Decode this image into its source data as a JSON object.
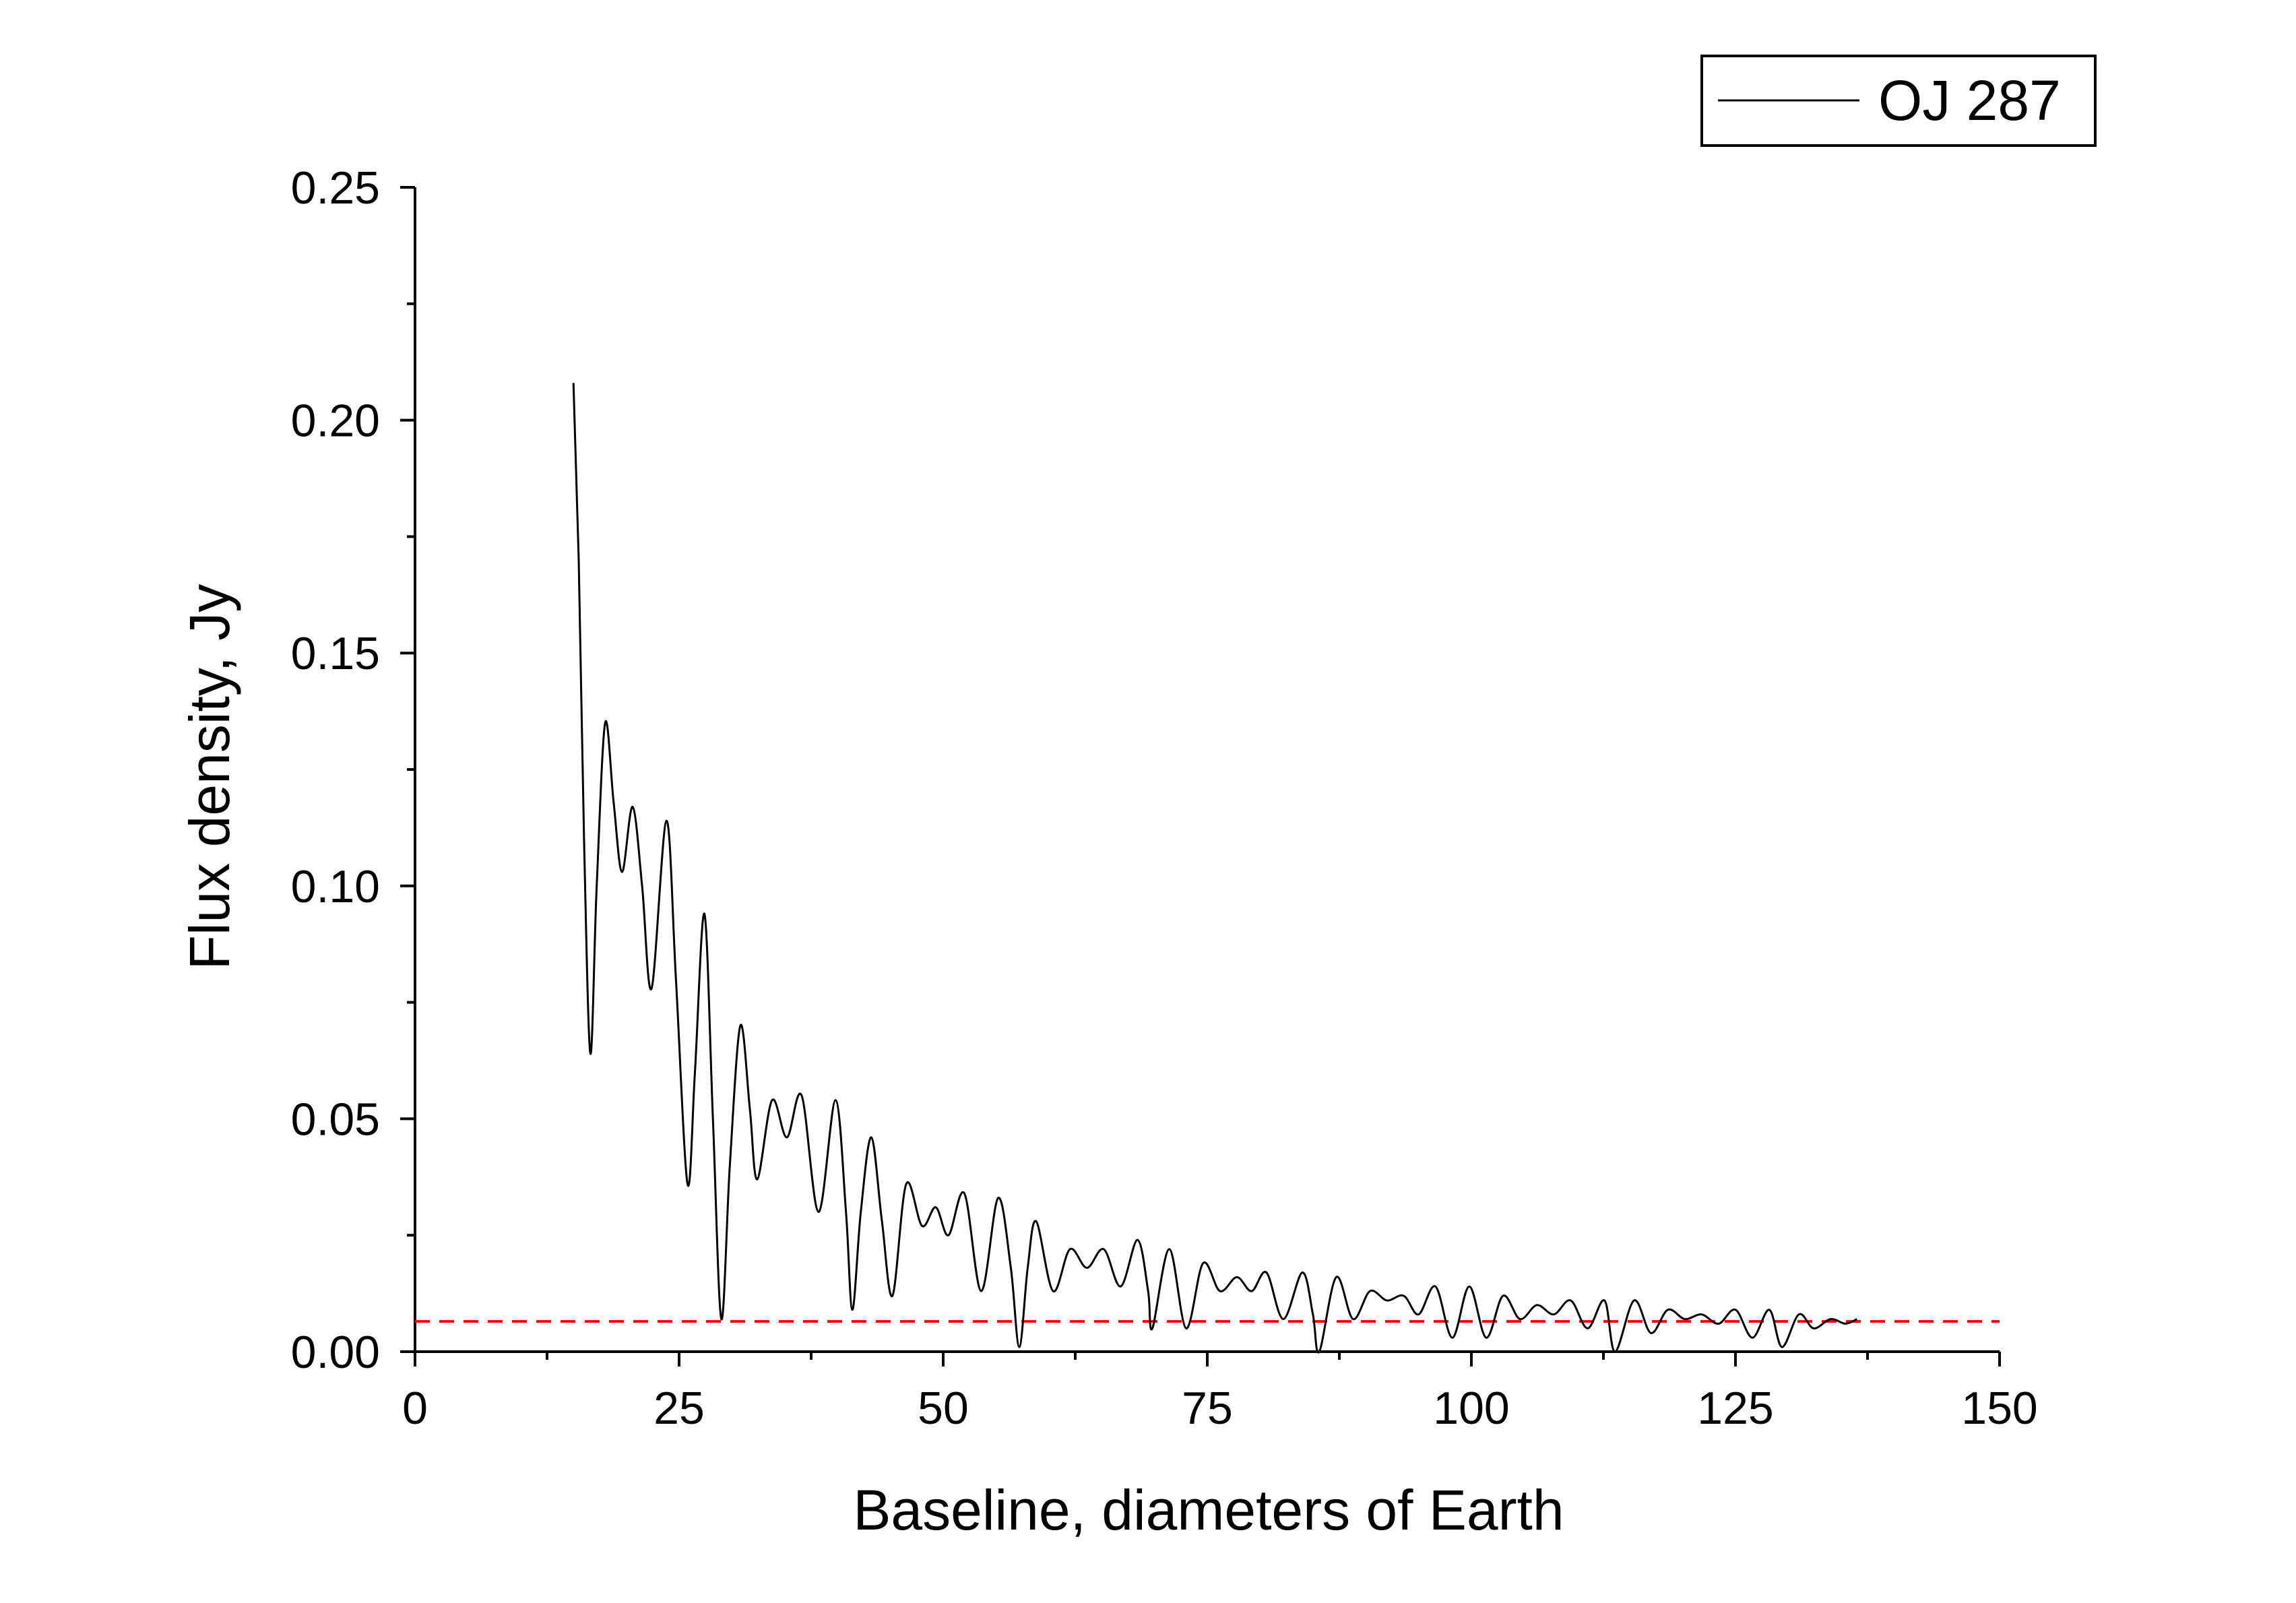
{
  "chart_data": {
    "type": "line",
    "xlabel": "Baseline, diameters of Earth",
    "ylabel": "Flux density, Jy",
    "xlim": [
      0,
      150
    ],
    "ylim": [
      0,
      0.25
    ],
    "x_ticks": [
      0,
      25,
      50,
      75,
      100,
      125,
      150
    ],
    "x_tick_labels": [
      "0",
      "25",
      "50",
      "75",
      "100",
      "125",
      "150"
    ],
    "y_ticks": [
      0,
      0.05,
      0.1,
      0.15,
      0.2,
      0.25
    ],
    "y_tick_labels": [
      "0.00",
      "0.05",
      "0.10",
      "0.15",
      "0.20",
      "0.25"
    ],
    "legend_position": "top-right",
    "grid": false,
    "series": [
      {
        "name": "OJ 287",
        "color": "#000000",
        "points": [
          [
            15.0,
            0.208
          ],
          [
            15.5,
            0.17
          ],
          [
            16.0,
            0.11
          ],
          [
            16.6,
            0.064
          ],
          [
            17.2,
            0.1
          ],
          [
            18.0,
            0.135
          ],
          [
            18.8,
            0.118
          ],
          [
            19.6,
            0.103
          ],
          [
            20.6,
            0.117
          ],
          [
            21.5,
            0.1
          ],
          [
            22.4,
            0.078
          ],
          [
            23.8,
            0.114
          ],
          [
            24.7,
            0.08
          ],
          [
            25.8,
            0.036
          ],
          [
            26.5,
            0.06
          ],
          [
            27.4,
            0.094
          ],
          [
            28.2,
            0.05
          ],
          [
            29.0,
            0.007
          ],
          [
            29.8,
            0.04
          ],
          [
            30.8,
            0.07
          ],
          [
            31.7,
            0.052
          ],
          [
            32.4,
            0.037
          ],
          [
            33.8,
            0.054
          ],
          [
            35.2,
            0.046
          ],
          [
            36.6,
            0.055
          ],
          [
            38.2,
            0.03
          ],
          [
            39.8,
            0.054
          ],
          [
            40.8,
            0.03
          ],
          [
            41.4,
            0.009
          ],
          [
            42.2,
            0.03
          ],
          [
            43.2,
            0.046
          ],
          [
            44.2,
            0.028
          ],
          [
            45.2,
            0.012
          ],
          [
            46.5,
            0.036
          ],
          [
            48.0,
            0.027
          ],
          [
            49.3,
            0.031
          ],
          [
            50.5,
            0.025
          ],
          [
            52.0,
            0.034
          ],
          [
            53.6,
            0.013
          ],
          [
            55.2,
            0.033
          ],
          [
            56.4,
            0.018
          ],
          [
            57.2,
            0.001
          ],
          [
            58.0,
            0.018
          ],
          [
            58.8,
            0.028
          ],
          [
            60.4,
            0.013
          ],
          [
            62.0,
            0.022
          ],
          [
            63.6,
            0.018
          ],
          [
            65.2,
            0.022
          ],
          [
            66.8,
            0.014
          ],
          [
            68.4,
            0.024
          ],
          [
            69.4,
            0.013
          ],
          [
            69.8,
            0.005
          ],
          [
            71.4,
            0.022
          ],
          [
            73.0,
            0.005
          ],
          [
            74.6,
            0.019
          ],
          [
            76.2,
            0.013
          ],
          [
            77.8,
            0.016
          ],
          [
            79.2,
            0.013
          ],
          [
            80.6,
            0.017
          ],
          [
            82.2,
            0.007
          ],
          [
            84.0,
            0.017
          ],
          [
            85.0,
            0.008
          ],
          [
            85.6,
            0.0
          ],
          [
            87.2,
            0.016
          ],
          [
            88.8,
            0.007
          ],
          [
            90.4,
            0.013
          ],
          [
            92.0,
            0.011
          ],
          [
            93.6,
            0.012
          ],
          [
            95.0,
            0.008
          ],
          [
            96.6,
            0.014
          ],
          [
            98.2,
            0.003
          ],
          [
            99.8,
            0.014
          ],
          [
            101.4,
            0.003
          ],
          [
            103.0,
            0.012
          ],
          [
            104.6,
            0.007
          ],
          [
            106.2,
            0.01
          ],
          [
            107.8,
            0.008
          ],
          [
            109.4,
            0.011
          ],
          [
            111.0,
            0.005
          ],
          [
            112.6,
            0.011
          ],
          [
            113.6,
            0.0
          ],
          [
            115.4,
            0.011
          ],
          [
            117.0,
            0.004
          ],
          [
            118.6,
            0.009
          ],
          [
            120.2,
            0.007
          ],
          [
            121.8,
            0.008
          ],
          [
            123.4,
            0.006
          ],
          [
            125.0,
            0.009
          ],
          [
            126.6,
            0.003
          ],
          [
            128.2,
            0.009
          ],
          [
            129.4,
            0.001
          ],
          [
            131.0,
            0.008
          ],
          [
            132.4,
            0.005
          ],
          [
            134.0,
            0.007
          ],
          [
            135.4,
            0.006
          ],
          [
            136.5,
            0.007
          ]
        ]
      }
    ],
    "reference_line": {
      "y": 0.0065,
      "color": "#ff0000",
      "style": "dashed",
      "x_range": [
        0,
        150
      ]
    }
  }
}
